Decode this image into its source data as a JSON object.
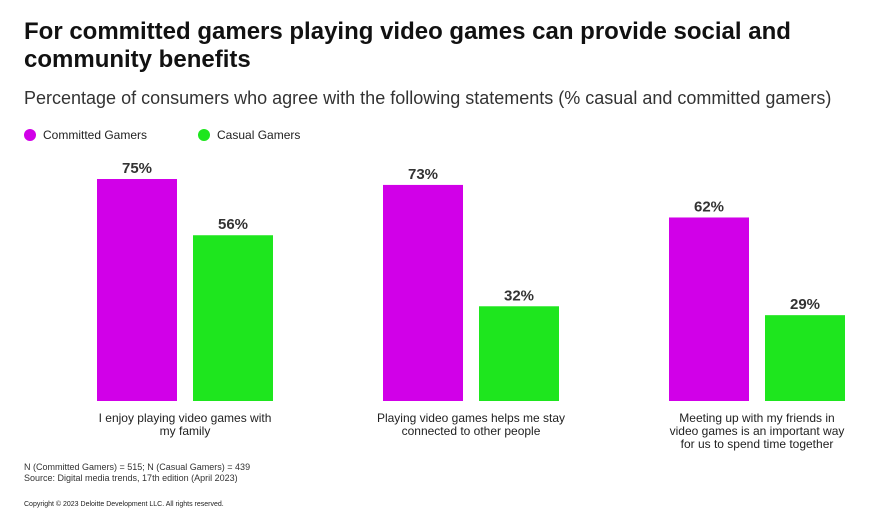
{
  "title": "For committed gamers playing video games can provide social and community benefits",
  "subtitle": "Percentage of consumers who agree with the following statements (% casual and committed gamers)",
  "colors": {
    "committed": "#d100e8",
    "casual": "#1ee61e"
  },
  "chart_data": {
    "type": "bar",
    "categories": [
      [
        "I enjoy playing video games with",
        "my family"
      ],
      [
        "Playing video games helps me stay",
        "connected to other people"
      ],
      [
        "Meeting up with my friends in",
        "video games is an important way",
        "for us to spend time together"
      ]
    ],
    "series": [
      {
        "name": "Committed Gamers",
        "values": [
          75,
          73,
          62
        ],
        "labels": [
          "75%",
          "73%",
          "62%"
        ]
      },
      {
        "name": "Casual Gamers",
        "values": [
          56,
          32,
          29
        ],
        "labels": [
          "56%",
          "32%",
          "29%"
        ]
      }
    ],
    "ylim": [
      0,
      100
    ],
    "legend": "top-left"
  },
  "footnotes": [
    "N (Committed Gamers) = 515; N (Casual Gamers) = 439",
    "Source: Digital media trends, 17th edition (April 2023)"
  ],
  "copyright": "Copyright © 2023 Deloitte Development LLC. All rights reserved."
}
